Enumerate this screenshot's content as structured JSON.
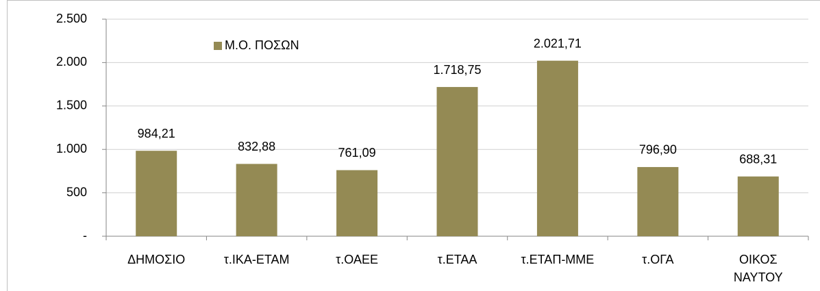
{
  "chart_data": {
    "type": "bar",
    "categories": [
      "ΔΗΜΟΣΙΟ",
      "τ.ΙΚΑ-ΕΤΑΜ",
      "τ.ΟΑΕΕ",
      "τ.ΕΤΑΑ",
      "τ.ΕΤΑΠ-ΜΜΕ",
      "τ.ΟΓΑ",
      "ΟΙΚΟΣ ΝΑΥΤΟΥ"
    ],
    "series": [
      {
        "name": "Μ.Ο. ΠΟΣΩΝ",
        "color": "#948a54",
        "values": [
          984.21,
          832.88,
          761.09,
          1718.75,
          2021.71,
          796.9,
          688.31
        ],
        "value_labels": [
          "984,21",
          "832,88",
          "761,09",
          "1.718,75",
          "2.021,71",
          "796,90",
          "688,31"
        ]
      }
    ],
    "ylim": [
      0,
      2500
    ],
    "yticks": [
      {
        "value": 0,
        "label": "-"
      },
      500,
      {
        "value": 1000,
        "label": "1.000"
      },
      {
        "value": 1500,
        "label": "1.500"
      },
      {
        "value": 2000,
        "label": "2.000"
      },
      {
        "value": 2500,
        "label": "2.500"
      }
    ],
    "grid": true,
    "legend": "top-left"
  }
}
